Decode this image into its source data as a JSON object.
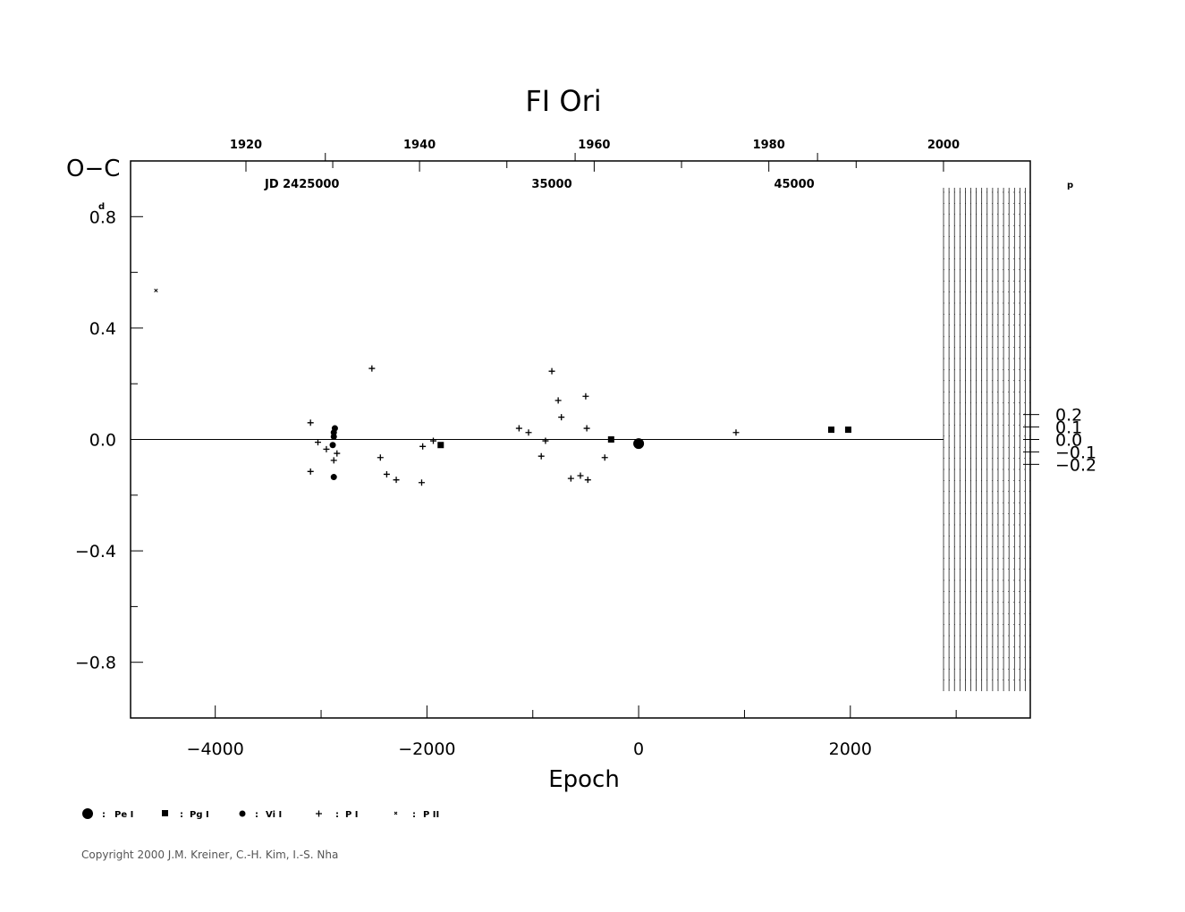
{
  "chart_data": {
    "type": "scatter",
    "title": "FI  Ori",
    "xlabel": "Epoch",
    "ylabel": "O−C",
    "ylabel_unit": "d",
    "right_axis_unit": "p",
    "xlim": [
      -4800,
      3700
    ],
    "ylim": [
      -1.0,
      1.0
    ],
    "x_ticks": [
      -4000,
      -2000,
      0,
      2000
    ],
    "x_tick_labels": [
      "−4000",
      "−2000",
      "0",
      "2000"
    ],
    "y_ticks": [
      0.8,
      0.4,
      0.0,
      -0.4,
      -0.8
    ],
    "y_tick_labels": [
      "0.8",
      "0.4",
      "0.0",
      "−0.4",
      "−0.8"
    ],
    "right_ticks": [
      0.2,
      0.1,
      0.0,
      -0.1,
      -0.2
    ],
    "right_tick_labels": [
      "0.2",
      "0.1",
      "0.0",
      "−0.1",
      "−0.2"
    ],
    "right_scale_period": 0.447,
    "top_year_ticks": [
      {
        "label": "1920",
        "epoch": -3710
      },
      {
        "label": "1940",
        "epoch": -2070
      },
      {
        "label": "1960",
        "epoch": -420
      },
      {
        "label": "1980",
        "epoch": 1230
      },
      {
        "label": "2000",
        "epoch": 2880
      }
    ],
    "jd_labels": [
      {
        "label": "JD  2425000",
        "epoch": -3180
      },
      {
        "label": "35000",
        "epoch": -820
      },
      {
        "label": "45000",
        "epoch": 1470
      }
    ],
    "zero_line": true,
    "series": [
      {
        "name": "Pe I",
        "symbol": "big-dot",
        "points": [
          [
            0,
            -0.015
          ]
        ]
      },
      {
        "name": "Pg I",
        "symbol": "square",
        "points": [
          [
            -1870,
            -0.02
          ],
          [
            -260,
            0.0
          ],
          [
            1820,
            0.035
          ],
          [
            1980,
            0.035
          ]
        ]
      },
      {
        "name": "Vi I",
        "symbol": "dot",
        "points": [
          [
            -2870,
            0.04
          ],
          [
            -2880,
            0.025
          ],
          [
            -2880,
            0.01
          ],
          [
            -2890,
            -0.02
          ],
          [
            -2880,
            -0.135
          ]
        ]
      },
      {
        "name": "P I",
        "symbol": "plus",
        "points": [
          [
            -3100,
            0.06
          ],
          [
            -3030,
            -0.01
          ],
          [
            -2950,
            -0.035
          ],
          [
            -2880,
            -0.075
          ],
          [
            -2850,
            -0.05
          ],
          [
            -3100,
            -0.115
          ],
          [
            -2520,
            0.255
          ],
          [
            -2440,
            -0.065
          ],
          [
            -2380,
            -0.125
          ],
          [
            -2290,
            -0.145
          ],
          [
            -2050,
            -0.155
          ],
          [
            -2040,
            -0.025
          ],
          [
            -1940,
            -0.005
          ],
          [
            -1130,
            0.04
          ],
          [
            -1040,
            0.025
          ],
          [
            -920,
            -0.06
          ],
          [
            -880,
            -0.005
          ],
          [
            -820,
            0.245
          ],
          [
            -760,
            0.14
          ],
          [
            -730,
            0.08
          ],
          [
            -640,
            -0.14
          ],
          [
            -550,
            -0.13
          ],
          [
            -500,
            0.155
          ],
          [
            -490,
            0.04
          ],
          [
            -480,
            -0.145
          ],
          [
            -320,
            -0.065
          ],
          [
            920,
            0.025
          ]
        ]
      },
      {
        "name": "P II",
        "symbol": "cross",
        "points": [
          [
            -4560,
            0.535
          ]
        ]
      }
    ],
    "grid": false,
    "legend_position": "bottom-left"
  },
  "footer": {
    "copyright": "Copyright 2000 J.M. Kreiner, C.-H. Kim, I.-S. Nha"
  }
}
